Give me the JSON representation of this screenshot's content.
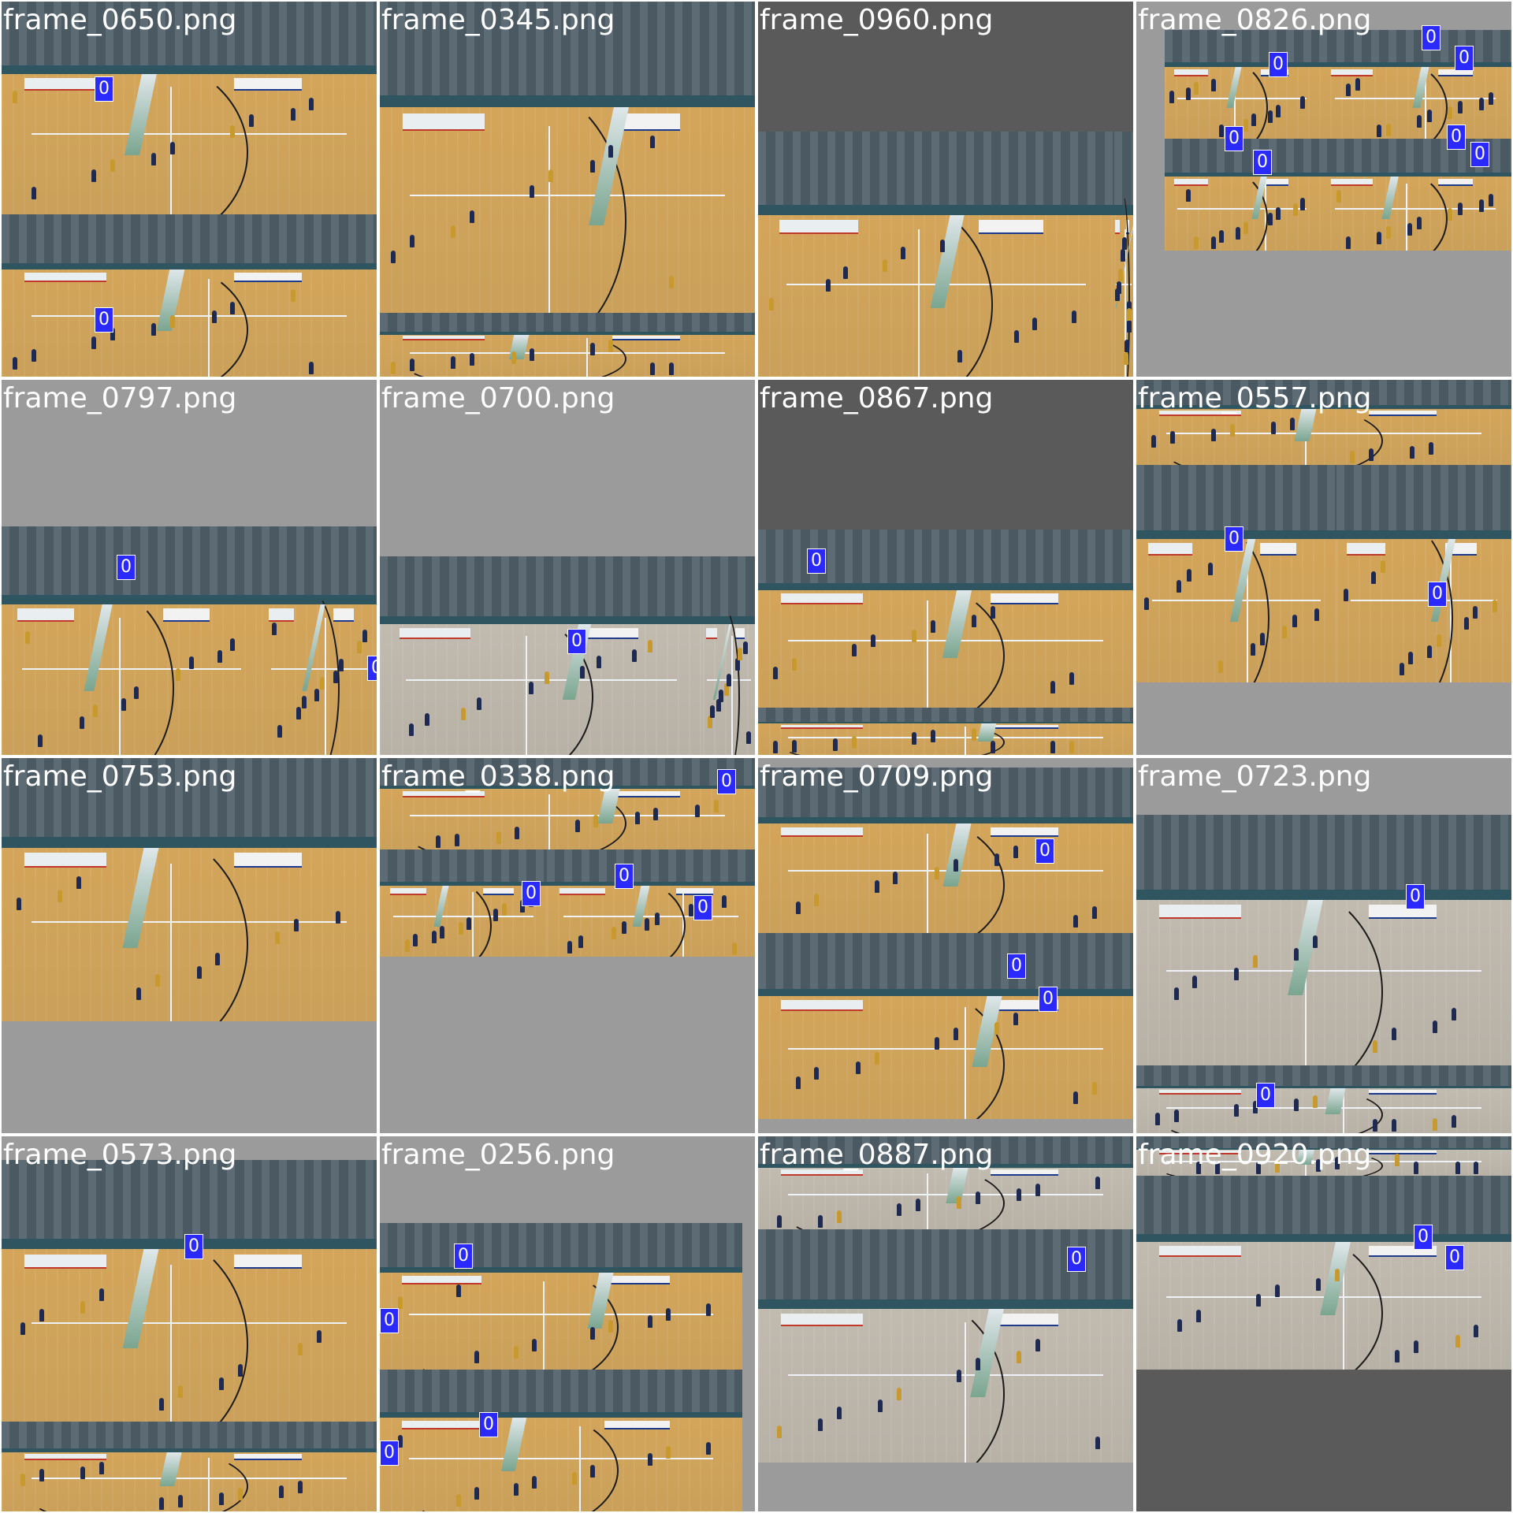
{
  "tiles": [
    {
      "label": "frame_0650.png",
      "badges": [
        "0",
        "0"
      ]
    },
    {
      "label": "frame_0345.png",
      "badges": []
    },
    {
      "label": "frame_0960.png",
      "badges": []
    },
    {
      "label": "frame_0826.png",
      "badges": [
        "0",
        "0",
        "0",
        "0",
        "0",
        "0",
        "0"
      ]
    },
    {
      "label": "frame_0797.png",
      "badges": [
        "0",
        "0"
      ]
    },
    {
      "label": "frame_0700.png",
      "badges": [
        "0"
      ]
    },
    {
      "label": "frame_0867.png",
      "badges": [
        "0"
      ]
    },
    {
      "label": "frame_0557.png",
      "badges": [
        "0",
        "0"
      ]
    },
    {
      "label": "frame_0753.png",
      "badges": []
    },
    {
      "label": "frame_0338.png",
      "badges": [
        "0",
        "0",
        "0",
        "0"
      ]
    },
    {
      "label": "frame_0709.png",
      "badges": [
        "0",
        "0",
        "0"
      ]
    },
    {
      "label": "frame_0723.png",
      "badges": [
        "0",
        "0"
      ]
    },
    {
      "label": "frame_0573.png",
      "badges": [
        "0"
      ]
    },
    {
      "label": "frame_0256.png",
      "badges": [
        "0",
        "0",
        "0",
        "0"
      ]
    },
    {
      "label": "frame_0887.png",
      "badges": [
        "0"
      ]
    },
    {
      "label": "frame_0920.png",
      "badges": [
        "0",
        "0"
      ]
    }
  ]
}
